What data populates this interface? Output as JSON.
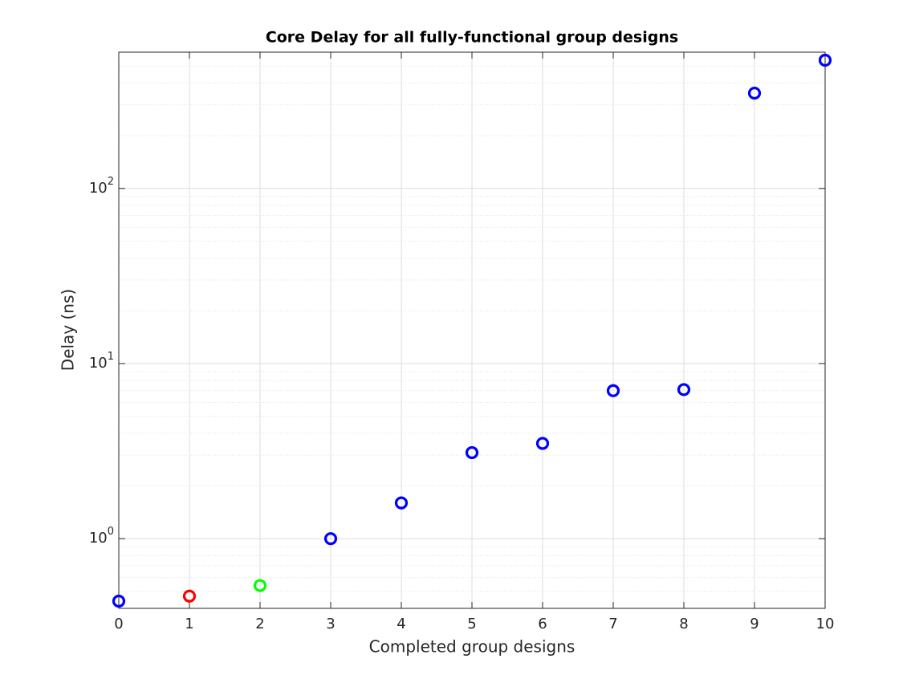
{
  "chart_data": {
    "type": "scatter",
    "title": "Core Delay for all fully-functional group designs",
    "x_label": "Completed group designs",
    "y_label": "Delay (ns)",
    "x": [
      0,
      1,
      2,
      3,
      4,
      5,
      6,
      7,
      8,
      9,
      10
    ],
    "values": [
      0.44,
      0.47,
      0.54,
      1.0,
      1.6,
      3.1,
      3.5,
      7.0,
      7.1,
      350,
      540
    ],
    "colors": [
      "#0000ff",
      "#ff0000",
      "#00ff00",
      "#0000ff",
      "#0000ff",
      "#0000ff",
      "#0000ff",
      "#0000ff",
      "#0000ff",
      "#0000ff",
      "#0000ff"
    ],
    "xlim": [
      0,
      10
    ],
    "xticks": [
      0,
      1,
      2,
      3,
      4,
      5,
      6,
      7,
      8,
      9,
      10
    ],
    "ylim": [
      0.4,
      600
    ],
    "yticks": [
      {
        "value": 1,
        "label": "10^0"
      },
      {
        "value": 10,
        "label": "10^1"
      },
      {
        "value": 100,
        "label": "10^2"
      }
    ],
    "y_log": true,
    "grid": true,
    "minor_grid": true
  }
}
